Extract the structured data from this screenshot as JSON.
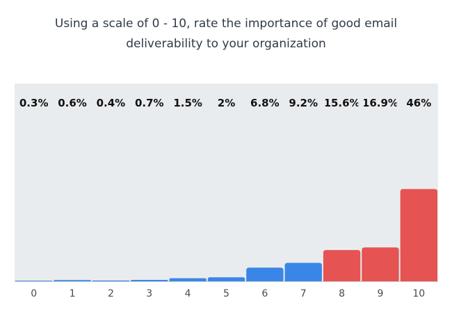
{
  "chart_data": {
    "type": "bar",
    "title": "Using a scale of 0 - 10, rate the importance of good email deliverability to your organization",
    "title_lines": [
      "Using a scale of 0 - 10, rate the importance of good email",
      "deliverability to your organization"
    ],
    "categories": [
      "0",
      "1",
      "2",
      "3",
      "4",
      "5",
      "6",
      "7",
      "8",
      "9",
      "10"
    ],
    "values": [
      0.3,
      0.6,
      0.4,
      0.7,
      1.5,
      2,
      6.8,
      9.2,
      15.6,
      16.9,
      46
    ],
    "value_labels": [
      "0.3%",
      "0.6%",
      "0.4%",
      "0.7%",
      "1.5%",
      "2%",
      "6.8%",
      "9.2%",
      "15.6%",
      "16.9%",
      "46%"
    ],
    "bar_colors": [
      "#3a86e8",
      "#3a86e8",
      "#3a86e8",
      "#3a86e8",
      "#3a86e8",
      "#3a86e8",
      "#3a86e8",
      "#3a86e8",
      "#e55353",
      "#e55353",
      "#e55353"
    ],
    "ylim": [
      0,
      100
    ],
    "xlabel": "",
    "ylabel": "",
    "grid": false,
    "legend": "none"
  }
}
